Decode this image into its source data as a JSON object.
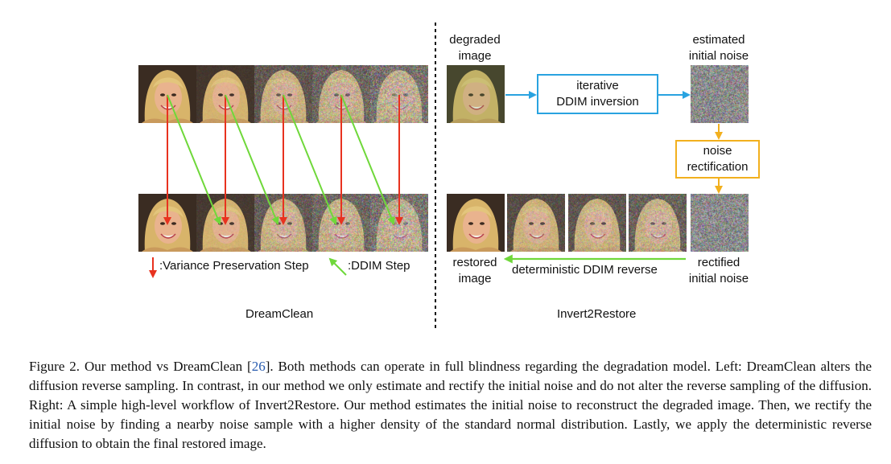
{
  "left": {
    "legend_variance": ":Variance Preservation Step",
    "legend_ddim": ":DDIM Step",
    "title": "DreamClean"
  },
  "right": {
    "degraded_label": "degraded\nimage",
    "estimated_label": "estimated\ninitial noise",
    "inversion_box": "iterative\nDDIM inversion",
    "rectification_box": "noise\nrectification",
    "restored_label": "restored\nimage",
    "reverse_label": "deterministic DDIM reverse",
    "rectified_label": "rectified\ninitial noise",
    "title": "Invert2Restore"
  },
  "colors": {
    "red_arrow": "#e8321f",
    "green_arrow": "#6fd83a",
    "blue_box": "#29a3e0",
    "orange_box": "#f2b01e",
    "divider": "#111111"
  },
  "caption": {
    "before_ref": "Figure 2. Our method vs DreamClean [",
    "ref": "26",
    "after_ref": "]. Both methods can operate in full blindness regarding the degradation model. Left: DreamClean alters the diffusion reverse sampling. In contrast, in our method we only estimate and rectify the initial noise and do not alter the reverse sampling of the diffusion. Right: A simple high-level workflow of Invert2Restore. Our method estimates the initial noise to reconstruct the degraded image. Then, we rectify the initial noise by finding a nearby noise sample with a higher density of the standard normal distribution. Lastly, we apply the deterministic reverse diffusion to obtain the final restored image."
  }
}
